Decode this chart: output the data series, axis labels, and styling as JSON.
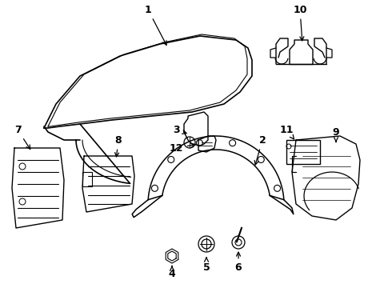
{
  "background_color": "#ffffff",
  "line_color": "#000000",
  "text_color": "#000000",
  "fig_width": 4.9,
  "fig_height": 3.6,
  "dpi": 100
}
